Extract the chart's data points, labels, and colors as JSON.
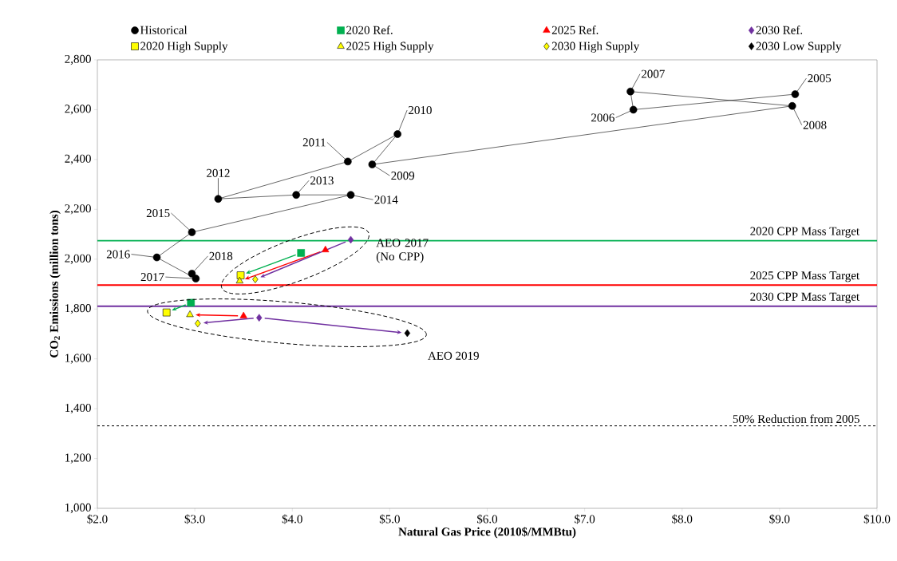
{
  "chart_data": {
    "type": "scatter",
    "xlabel": "Natural Gas Price (2010$/MMBtu)",
    "ylabel": "CO$_{2}$ Emissions (million tons)",
    "xlim": [
      2,
      10
    ],
    "ylim": [
      1000,
      2800
    ],
    "xticks": [
      {
        "value": 2,
        "label": "$2.0"
      },
      {
        "value": 3,
        "label": "$3.0"
      },
      {
        "value": 4,
        "label": "$4.0"
      },
      {
        "value": 5,
        "label": "$5.0"
      },
      {
        "value": 6,
        "label": "$6.0"
      },
      {
        "value": 7,
        "label": "$7.0"
      },
      {
        "value": 8,
        "label": "$8.0"
      },
      {
        "value": 9,
        "label": "$9.0"
      },
      {
        "value": 10,
        "label": "$10.0"
      }
    ],
    "yticks": [
      {
        "value": 1000,
        "label": "1,000"
      },
      {
        "value": 1200,
        "label": "1,200"
      },
      {
        "value": 1400,
        "label": "1,400"
      },
      {
        "value": 1600,
        "label": "1,600"
      },
      {
        "value": 1800,
        "label": "1,800"
      },
      {
        "value": 2000,
        "label": "2,000"
      },
      {
        "value": 2200,
        "label": "2,200"
      },
      {
        "value": 2400,
        "label": "2,400"
      },
      {
        "value": 2600,
        "label": "2,600"
      },
      {
        "value": 2800,
        "label": "2,800"
      }
    ],
    "legend": "top",
    "series": [
      {
        "name": "Historical",
        "type": "line",
        "marker": "circle",
        "color": "#000000",
        "x": [
          9.16,
          7.5,
          7.47,
          9.13,
          4.82,
          5.08,
          4.57,
          3.24,
          4.04,
          4.6,
          2.97,
          2.61,
          3.01,
          2.97
        ],
        "values": [
          2662,
          2600,
          2673,
          2615,
          2380,
          2502,
          2392,
          2242,
          2258,
          2258,
          2108,
          2007,
          1922,
          1942
        ]
      },
      {
        "name": "2020 Ref.",
        "marker": "square",
        "color": "#00b050",
        "x": [
          4.09,
          2.96
        ],
        "values": [
          2025,
          1825
        ]
      },
      {
        "name": "2025 Ref.",
        "marker": "triangle",
        "color": "#ff0000",
        "x": [
          4.34,
          3.5
        ],
        "values": [
          2037,
          1772
        ]
      },
      {
        "name": "2030 Ref.",
        "marker": "diamond",
        "color": "#7030a0",
        "x": [
          4.6,
          3.66
        ],
        "values": [
          2078,
          1765
        ]
      },
      {
        "name": "2020 High Supply",
        "marker": "square",
        "color": "#ffff00",
        "x": [
          3.47,
          2.71
        ],
        "values": [
          1935,
          1786
        ]
      },
      {
        "name": "2025 High Supply",
        "marker": "triangle",
        "color": "#ffff00",
        "x": [
          3.46,
          2.95
        ],
        "values": [
          1912,
          1777
        ]
      },
      {
        "name": "2030 High Supply",
        "marker": "diamond",
        "color": "#ffff00",
        "x": [
          3.62,
          3.03
        ],
        "values": [
          1919,
          1742
        ]
      },
      {
        "name": "2030 Low Supply",
        "marker": "diamond",
        "color": "#000000",
        "x": [
          5.18
        ],
        "values": [
          1703
        ]
      }
    ],
    "ref_lines": [
      {
        "axis": "y",
        "value": 2074,
        "label": "2020 CPP Mass Target",
        "color": "#00b050",
        "line_style": "solid"
      },
      {
        "axis": "y",
        "value": 1896,
        "label": "2025 CPP Mass Target",
        "color": "#ff0000",
        "line_style": "solid"
      },
      {
        "axis": "y",
        "value": 1811,
        "label": "2030 CPP Mass Target",
        "color": "#7030a0",
        "line_style": "solid"
      },
      {
        "axis": "y",
        "value": 1331,
        "label": "50% Reduction from 2005",
        "color": "#000000",
        "line_style": "dashed"
      }
    ],
    "annotations": [
      {
        "text": "2005",
        "x": 9.16,
        "y": 2662
      },
      {
        "text": "2006",
        "x": 7.5,
        "y": 2600
      },
      {
        "text": "2007",
        "x": 7.47,
        "y": 2673
      },
      {
        "text": "2008",
        "x": 9.13,
        "y": 2615
      },
      {
        "text": "2009",
        "x": 4.82,
        "y": 2380
      },
      {
        "text": "2010",
        "x": 5.08,
        "y": 2502
      },
      {
        "text": "2011",
        "x": 4.57,
        "y": 2392
      },
      {
        "text": "2012",
        "x": 3.24,
        "y": 2242
      },
      {
        "text": "2013",
        "x": 4.04,
        "y": 2258
      },
      {
        "text": "2014",
        "x": 4.6,
        "y": 2258
      },
      {
        "text": "2015",
        "x": 2.97,
        "y": 2108
      },
      {
        "text": "2016",
        "x": 2.61,
        "y": 2007
      },
      {
        "text": "2017",
        "x": 3.01,
        "y": 1922
      },
      {
        "text": "2018",
        "x": 2.97,
        "y": 1942
      },
      "AEO 2017 (No CPP)",
      "AEO 2019"
    ]
  }
}
